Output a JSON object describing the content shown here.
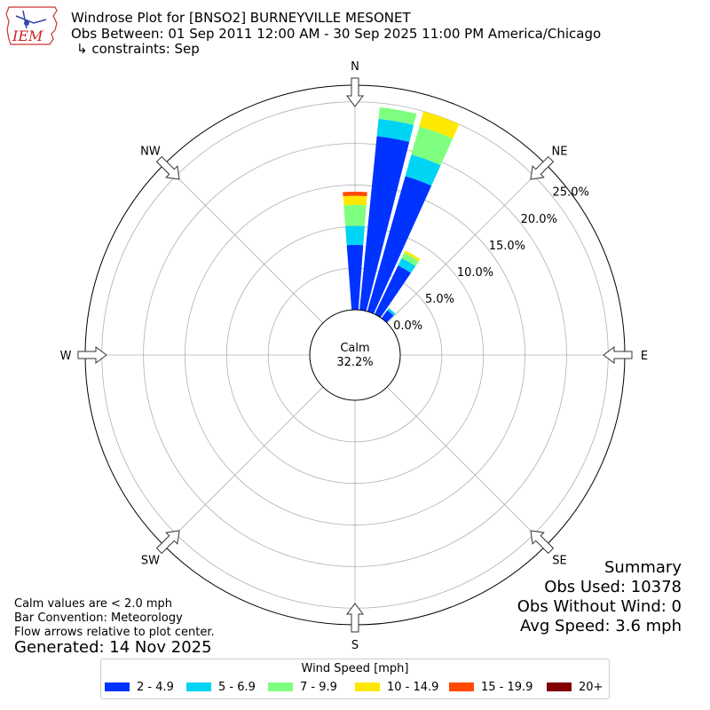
{
  "header": {
    "logo_text": "IEM",
    "title_line1": "Windrose Plot for [BNSO2] BURNEYVILLE MESONET",
    "title_line2": "Obs Between: 01 Sep 2011 12:00 AM - 30 Sep 2025 11:00 PM America/Chicago",
    "title_line3": "↳ constraints: Sep"
  },
  "calm": {
    "label": "Calm",
    "value": "32.2%"
  },
  "notes": {
    "calm_note": "Calm values are < 2.0 mph",
    "convention": "Bar Convention: Meteorology",
    "flow": "Flow arrows relative to plot center.",
    "generated": "Generated: 14 Nov 2025"
  },
  "summary": {
    "title": "Summary",
    "obs_used": "Obs Used: 10378",
    "obs_without_wind": "Obs Without Wind: 0",
    "avg_speed": "Avg Speed: 3.6 mph"
  },
  "legend": {
    "title": "Wind Speed [mph]",
    "items": [
      {
        "label": "2 - 4.9",
        "color": "#0033ff"
      },
      {
        "label": "5 - 6.9",
        "color": "#00d4f5"
      },
      {
        "label": "7 - 9.9",
        "color": "#7fff7f"
      },
      {
        "label": "10 - 14.9",
        "color": "#ffe800"
      },
      {
        "label": "15 - 19.9",
        "color": "#ff4a00"
      },
      {
        "label": "20+",
        "color": "#800000"
      }
    ]
  },
  "chart_data": {
    "type": "windrose",
    "direction_labels": [
      "N",
      "NE",
      "E",
      "SE",
      "S",
      "SW",
      "W",
      "NW"
    ],
    "radial_ticks": [
      "0.0%",
      "5.0%",
      "10.0%",
      "15.0%",
      "20.0%",
      "25.0%"
    ],
    "radial_tick_values": [
      0,
      5,
      10,
      15,
      20,
      25
    ],
    "rmax": 27,
    "calm_percent": 32.2,
    "speed_bins": [
      "2 - 4.9",
      "5 - 6.9",
      "7 - 9.9",
      "10 - 14.9",
      "15 - 19.9",
      "20+"
    ],
    "bin_colors": [
      "#0033ff",
      "#00d4f5",
      "#7fff7f",
      "#ffe800",
      "#ff4a00",
      "#800000"
    ],
    "sectors": [
      {
        "direction_deg": 0,
        "values": [
          7.8,
          2.3,
          2.5,
          1.1,
          0.5,
          0.0
        ]
      },
      {
        "direction_deg": 10,
        "values": [
          21.0,
          2.1,
          1.4,
          0.0,
          0.0,
          0.0
        ]
      },
      {
        "direction_deg": 20,
        "values": [
          16.9,
          2.7,
          3.5,
          1.9,
          0.0,
          0.0
        ]
      },
      {
        "direction_deg": 30,
        "values": [
          6.5,
          1.0,
          0.7,
          0.3,
          0.0,
          0.0
        ]
      },
      {
        "direction_deg": 40,
        "values": [
          1.2,
          0.3,
          0.0,
          0.0,
          0.0,
          0.0
        ]
      }
    ]
  }
}
